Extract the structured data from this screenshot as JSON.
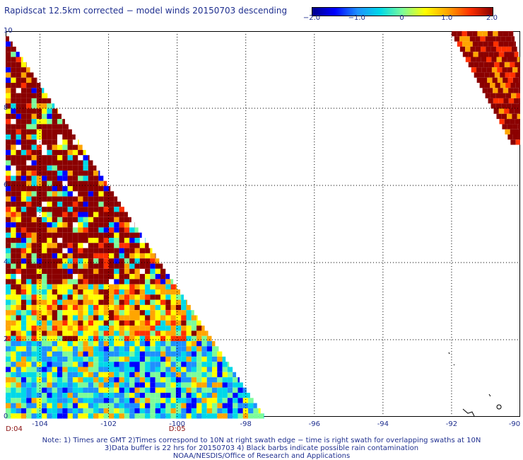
{
  "title": "Rapidscat 12.5km corrected − model winds 20150703 descending",
  "colorbar": {
    "range": [
      -2.0,
      2.0
    ],
    "tick_labels": [
      "−2.0",
      "−1.0",
      "0",
      "1.0",
      "2.0"
    ],
    "tick_values": [
      -2.0,
      -1.0,
      0,
      1.0,
      2.0
    ],
    "colors": [
      "#00008b",
      "#0000ff",
      "#1e90ff",
      "#00d8e8",
      "#7cfc9a",
      "#ffff00",
      "#ffa500",
      "#ff3000",
      "#8b0000"
    ]
  },
  "map": {
    "lat_range": [
      0,
      10
    ],
    "lon_range": [
      -105,
      -90
    ],
    "lat_ticks": [
      "0",
      "2",
      "4",
      "6",
      "8",
      "10"
    ],
    "lat_values": [
      0,
      2,
      4,
      6,
      8,
      10
    ],
    "lon_ticks": [
      "-104",
      "-102",
      "-100",
      "-98",
      "-96",
      "-94",
      "-92",
      "-90"
    ],
    "lon_values": [
      -104,
      -102,
      -100,
      -98,
      -96,
      -94,
      -92,
      -90
    ],
    "gridlines": true,
    "time_labels": [
      {
        "text": "D:04",
        "lon": -105
      },
      {
        "text": "D:05",
        "lon": -100
      }
    ],
    "swaths": [
      {
        "description": "west",
        "corner_lon": -105,
        "corner_lat_top": 10,
        "edge_lon_at_lat0": -97.4
      },
      {
        "description": "east",
        "top_lon_start": -92.0,
        "top_lon_end": -90.2
      }
    ]
  },
  "notes": [
    "Note: 1) Times are GMT 2)Times correspond to 10N at right swath edge − time is right swath for overlapping swaths at 10N",
    "3)Data buffer is 22 hrs for 20150703 4) Black barbs indicate possible rain contamination",
    "NOAA/NESDIS/Office of Research and Applications"
  ]
}
